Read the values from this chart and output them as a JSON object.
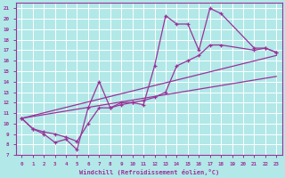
{
  "xlabel": "Windchill (Refroidissement éolien,°C)",
  "bg_color": "#b2e8e8",
  "grid_color": "#ffffff",
  "line_color": "#993399",
  "xlim": [
    -0.5,
    23.5
  ],
  "ylim": [
    7,
    21.5
  ],
  "xticks": [
    0,
    1,
    2,
    3,
    4,
    5,
    6,
    7,
    8,
    9,
    10,
    11,
    12,
    13,
    14,
    15,
    16,
    17,
    18,
    19,
    20,
    21,
    22,
    23
  ],
  "yticks": [
    7,
    8,
    9,
    10,
    11,
    12,
    13,
    14,
    15,
    16,
    17,
    18,
    19,
    20,
    21
  ],
  "line1_x": [
    0,
    1,
    2,
    3,
    4,
    5,
    6,
    7,
    8,
    9,
    10,
    11,
    12,
    13,
    14,
    15,
    16,
    17,
    18,
    21,
    22,
    23
  ],
  "line1_y": [
    10.5,
    9.5,
    9.0,
    8.2,
    8.5,
    7.5,
    11.5,
    14.0,
    11.5,
    12.0,
    12.0,
    11.8,
    15.5,
    20.3,
    19.5,
    19.5,
    17.0,
    21.0,
    20.5,
    17.2,
    17.2,
    16.8
  ],
  "line2_x": [
    0,
    1,
    2,
    3,
    4,
    5,
    6,
    7,
    8,
    9,
    10,
    11,
    12,
    13,
    14,
    15,
    16,
    17,
    18,
    21,
    22,
    23
  ],
  "line2_y": [
    10.5,
    9.5,
    9.2,
    9.0,
    8.7,
    8.3,
    10.0,
    11.5,
    11.5,
    11.8,
    12.0,
    12.2,
    12.5,
    13.0,
    15.5,
    16.0,
    16.5,
    17.5,
    17.5,
    17.0,
    17.2,
    16.8
  ],
  "line3_x": [
    0,
    23
  ],
  "line3_y": [
    10.5,
    16.5
  ],
  "line4_x": [
    0,
    23
  ],
  "line4_y": [
    10.5,
    14.5
  ]
}
